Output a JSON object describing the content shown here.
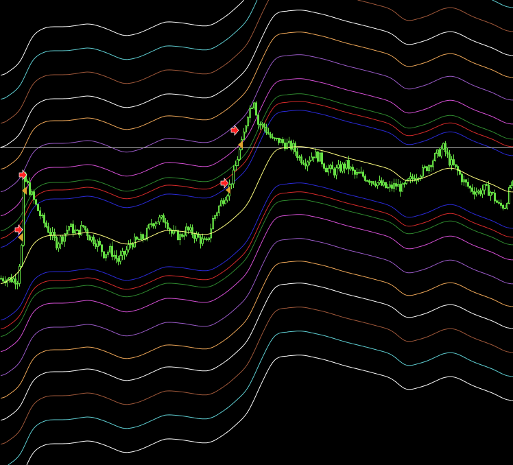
{
  "chart_data": {
    "type": "candlestick",
    "title": "",
    "xlabel": "",
    "ylabel": "",
    "grid": false,
    "background": "#000000",
    "candle_color": "#66e044",
    "ma_color": "#ffff80",
    "hline": {
      "value": 463,
      "color": "#b0b0b0"
    },
    "ma": [
      [
        0,
        261
      ],
      [
        10,
        283
      ],
      [
        15,
        323
      ],
      [
        22,
        335
      ],
      [
        33,
        335
      ],
      [
        43,
        340
      ],
      [
        50,
        334
      ],
      [
        60,
        321
      ],
      [
        67,
        325
      ],
      [
        80,
        343
      ],
      [
        90,
        340
      ],
      [
        97,
        336
      ],
      [
        102,
        336
      ],
      [
        110,
        351
      ],
      [
        120,
        378
      ],
      [
        127,
        425
      ],
      [
        133,
        461
      ],
      [
        146,
        465
      ],
      [
        157,
        458
      ],
      [
        168,
        448
      ],
      [
        179,
        440
      ],
      [
        190,
        431
      ],
      [
        197,
        412
      ],
      [
        207,
        420
      ],
      [
        216,
        433
      ],
      [
        221,
        433
      ],
      [
        229,
        420
      ],
      [
        240,
        408
      ],
      [
        246,
        398
      ],
      [
        249,
        398
      ]
    ],
    "close": [
      [
        0,
        272
      ],
      [
        8,
        270
      ],
      [
        10,
        318
      ],
      [
        11,
        418
      ],
      [
        13,
        408
      ],
      [
        17,
        378
      ],
      [
        20,
        358
      ],
      [
        23,
        343
      ],
      [
        27,
        323
      ],
      [
        30,
        333
      ],
      [
        33,
        348
      ],
      [
        37,
        338
      ],
      [
        40,
        348
      ],
      [
        43,
        333
      ],
      [
        47,
        323
      ],
      [
        50,
        308
      ],
      [
        53,
        313
      ],
      [
        57,
        298
      ],
      [
        60,
        308
      ],
      [
        63,
        323
      ],
      [
        67,
        328
      ],
      [
        70,
        333
      ],
      [
        73,
        353
      ],
      [
        77,
        358
      ],
      [
        80,
        358
      ],
      [
        83,
        338
      ],
      [
        87,
        333
      ],
      [
        90,
        343
      ],
      [
        93,
        338
      ],
      [
        97,
        328
      ],
      [
        100,
        323
      ],
      [
        103,
        358
      ],
      [
        107,
        383
      ],
      [
        110,
        398
      ],
      [
        113,
        423
      ],
      [
        115,
        448
      ],
      [
        117,
        468
      ],
      [
        120,
        513
      ],
      [
        123,
        533
      ],
      [
        125,
        498
      ],
      [
        128,
        493
      ],
      [
        132,
        473
      ],
      [
        135,
        473
      ],
      [
        138,
        468
      ],
      [
        142,
        463
      ],
      [
        145,
        448
      ],
      [
        148,
        443
      ],
      [
        152,
        453
      ],
      [
        155,
        448
      ],
      [
        158,
        433
      ],
      [
        162,
        428
      ],
      [
        165,
        433
      ],
      [
        168,
        438
      ],
      [
        172,
        423
      ],
      [
        175,
        423
      ],
      [
        178,
        418
      ],
      [
        182,
        413
      ],
      [
        185,
        408
      ],
      [
        188,
        403
      ],
      [
        192,
        408
      ],
      [
        195,
        403
      ],
      [
        198,
        413
      ],
      [
        202,
        423
      ],
      [
        205,
        428
      ],
      [
        208,
        438
      ],
      [
        212,
        453
      ],
      [
        215,
        463
      ],
      [
        218,
        443
      ],
      [
        222,
        428
      ],
      [
        225,
        413
      ],
      [
        228,
        403
      ],
      [
        232,
        398
      ],
      [
        235,
        403
      ],
      [
        238,
        398
      ],
      [
        242,
        378
      ],
      [
        245,
        378
      ],
      [
        248,
        408
      ],
      [
        249,
        408
      ]
    ],
    "bands": [
      {
        "offset": 53,
        "color": "#2a2ad8"
      },
      {
        "offset": 66,
        "color": "#d82a2a"
      },
      {
        "offset": 77,
        "color": "#2f8a2f"
      },
      {
        "offset": 99,
        "color": "#d64fd6"
      },
      {
        "offset": 134,
        "color": "#9a5ac8"
      },
      {
        "offset": 167,
        "color": "#f0a858"
      },
      {
        "offset": 199,
        "color": "#ffffff"
      },
      {
        "offset": 234,
        "color": "#a0583a"
      },
      {
        "offset": 269,
        "color": "#5fd0d4"
      },
      {
        "offset": 304,
        "color": "#ffffff"
      }
    ],
    "signals": [
      {
        "type": "sell-arrow",
        "bar": 9,
        "value": 343,
        "color": "#ff2020"
      },
      {
        "type": "sell-arrow",
        "bar": 11,
        "value": 423,
        "color": "#ff2020"
      },
      {
        "type": "sell-arrow",
        "bar": 109,
        "value": 411,
        "color": "#ff2020"
      },
      {
        "type": "sell-arrow",
        "bar": 114,
        "value": 488,
        "color": "#ff2020"
      },
      {
        "type": "triangle",
        "bar": 10,
        "value": 332,
        "color": "#e0a030"
      },
      {
        "type": "triangle",
        "bar": 12,
        "value": 400,
        "color": "#e0a030"
      },
      {
        "type": "triangle",
        "bar": 111,
        "value": 401,
        "color": "#e0a030"
      },
      {
        "type": "triangle",
        "bar": 117,
        "value": 467,
        "color": "#e0a030"
      }
    ]
  }
}
